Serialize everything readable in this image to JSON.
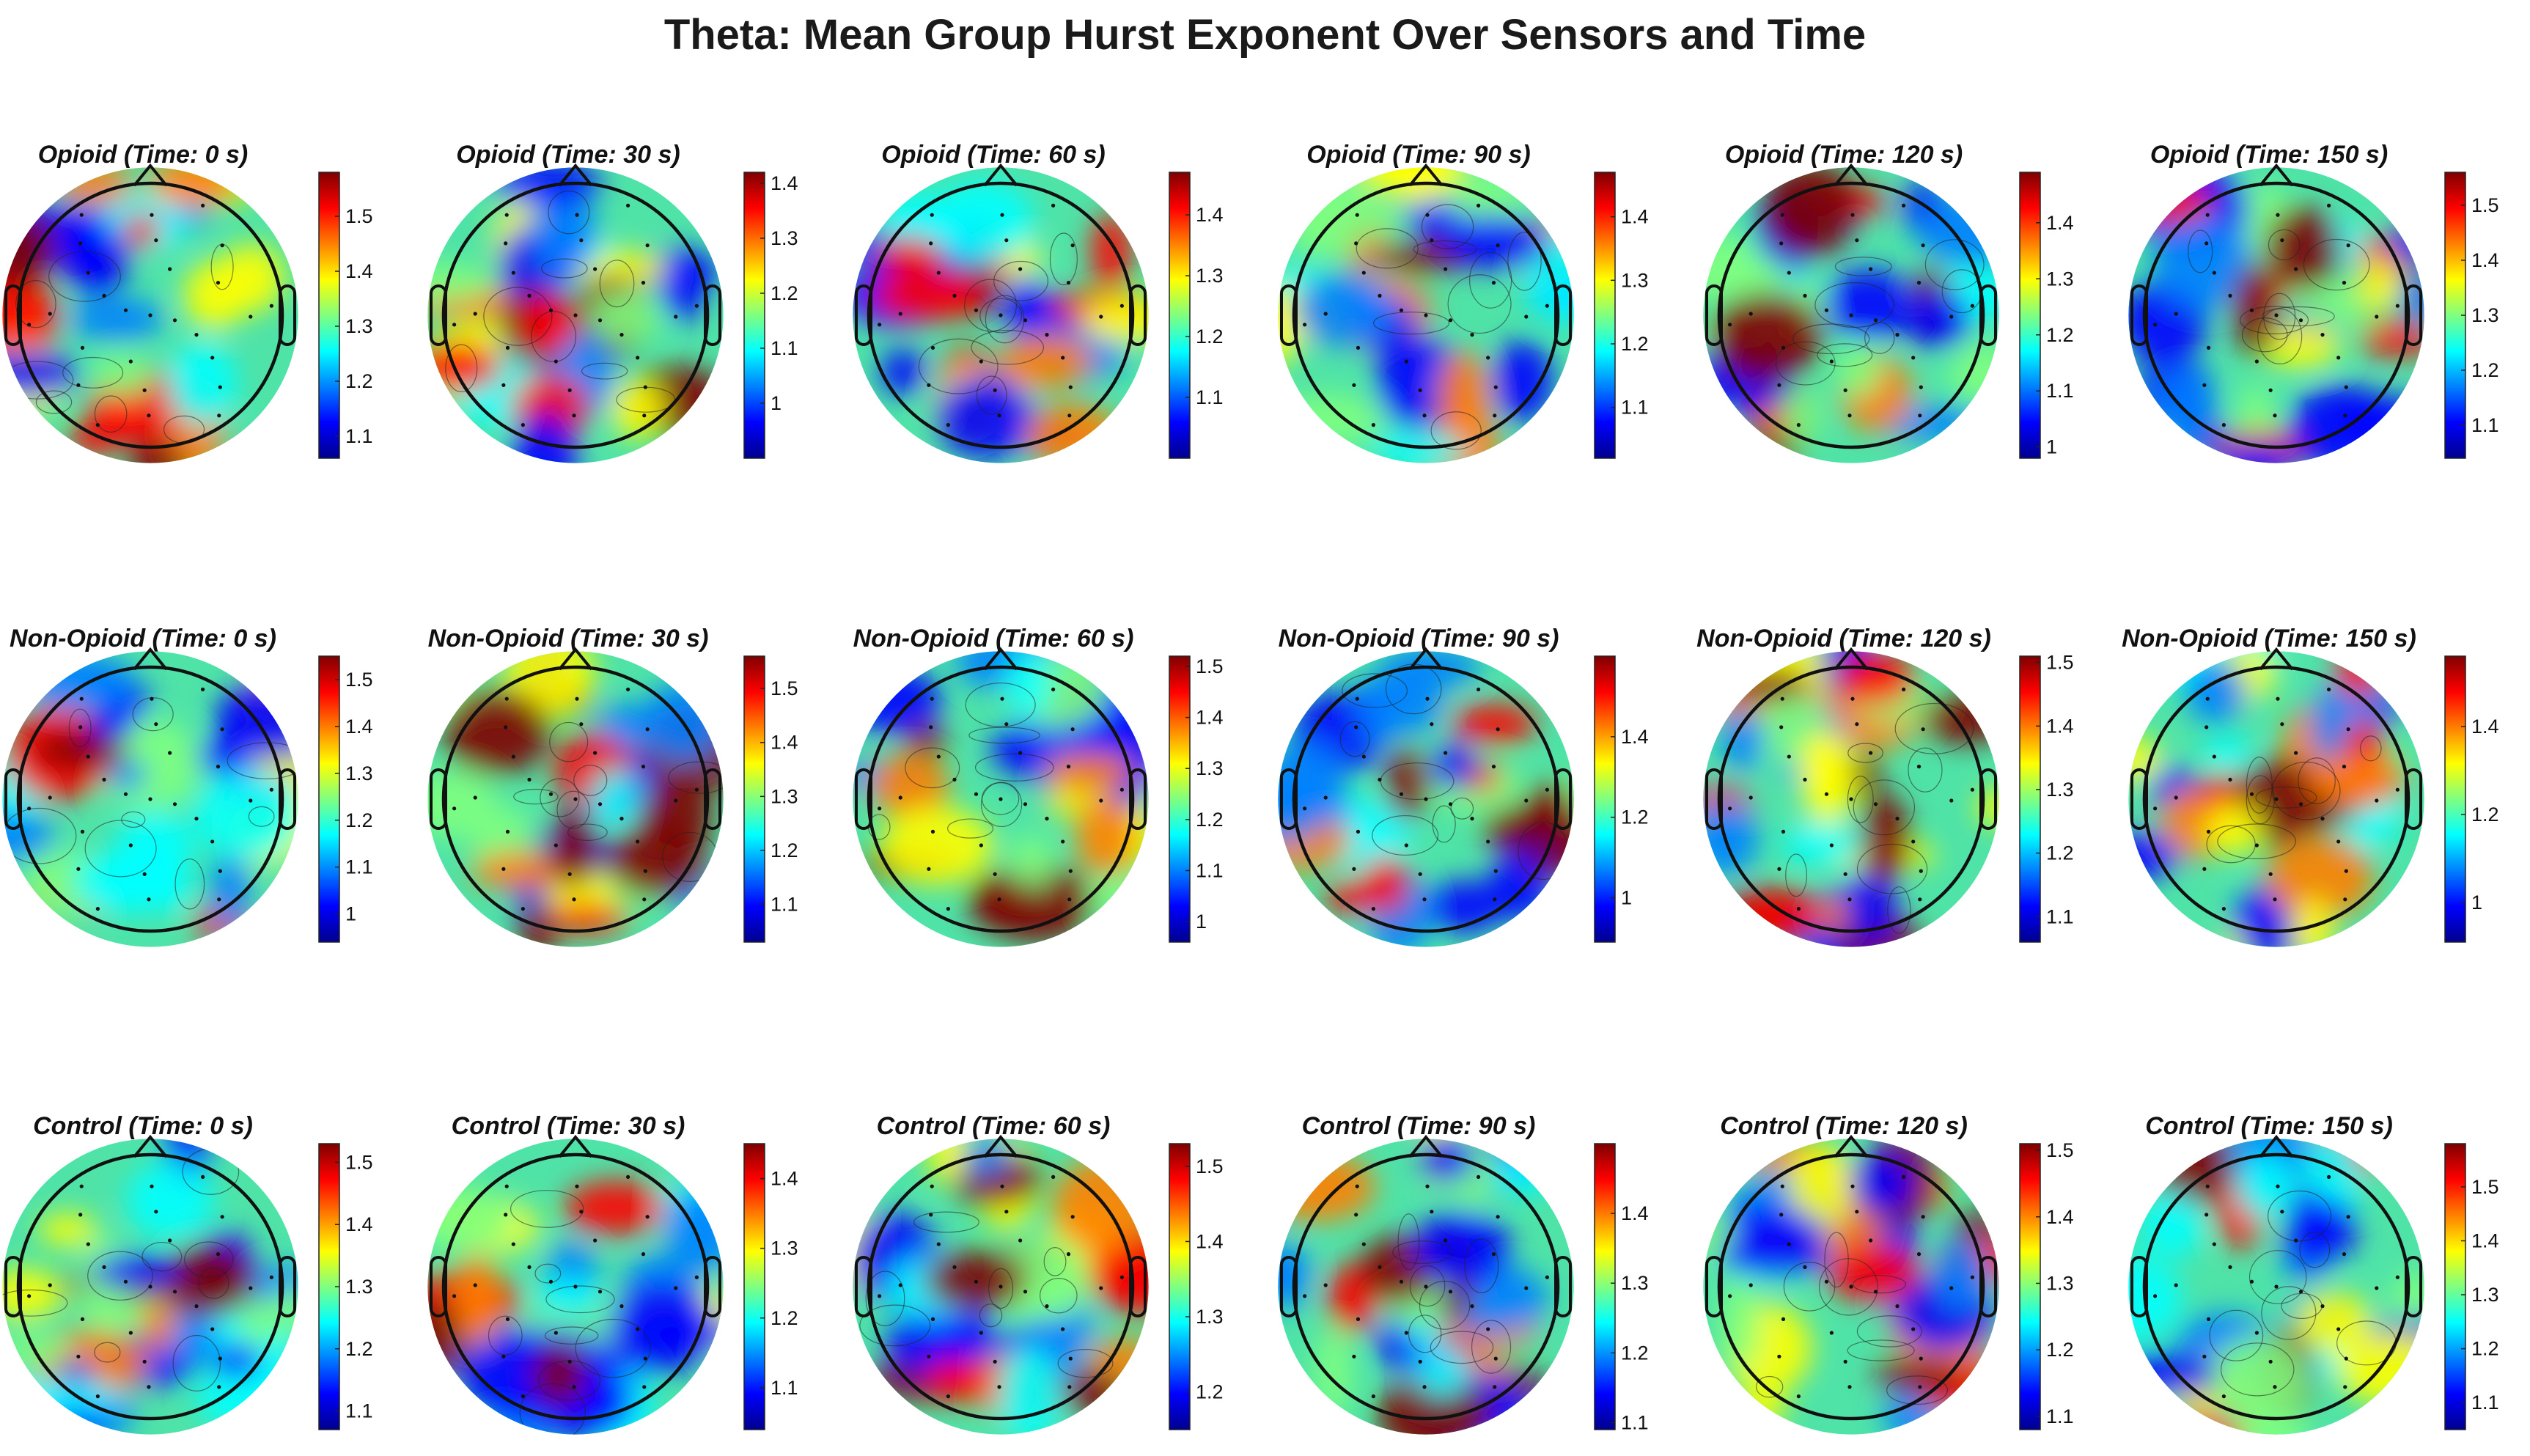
{
  "title": "Theta: Mean Group Hurst Exponent Over Sensors and Time",
  "colormap": [
    "#00008f",
    "#0000ff",
    "#0080ff",
    "#00ffff",
    "#80ff80",
    "#ffff00",
    "#ff8000",
    "#ff0000",
    "#800000"
  ],
  "groups": [
    "Opioid",
    "Non-Opioid",
    "Control"
  ],
  "panels": [
    [
      {
        "title": "Opioid (Time: 0 s)",
        "ticks": [
          "1.1",
          "1.2",
          "1.3",
          "1.4",
          "1.5"
        ],
        "range": [
          1.06,
          1.58
        ]
      },
      {
        "title": "Opioid (Time: 30 s)",
        "ticks": [
          "1",
          "1.1",
          "1.2",
          "1.3",
          "1.4"
        ],
        "range": [
          0.9,
          1.42
        ]
      },
      {
        "title": "Opioid (Time: 60 s)",
        "ticks": [
          "1.1",
          "1.2",
          "1.3",
          "1.4"
        ],
        "range": [
          1.0,
          1.47
        ]
      },
      {
        "title": "Opioid (Time: 90 s)",
        "ticks": [
          "1.1",
          "1.2",
          "1.3",
          "1.4"
        ],
        "range": [
          1.02,
          1.47
        ]
      },
      {
        "title": "Opioid (Time: 120 s)",
        "ticks": [
          "1",
          "1.1",
          "1.2",
          "1.3",
          "1.4"
        ],
        "range": [
          0.98,
          1.49
        ]
      },
      {
        "title": "Opioid (Time: 150 s)",
        "ticks": [
          "1.1",
          "1.2",
          "1.3",
          "1.4",
          "1.5"
        ],
        "range": [
          1.04,
          1.56
        ]
      }
    ],
    [
      {
        "title": "Non-Opioid (Time: 0 s)",
        "ticks": [
          "1",
          "1.1",
          "1.2",
          "1.3",
          "1.4",
          "1.5"
        ],
        "range": [
          0.94,
          1.55
        ]
      },
      {
        "title": "Non-Opioid (Time: 30 s)",
        "ticks": [
          "1.1",
          "1.2",
          "1.3",
          "1.4",
          "1.5"
        ],
        "range": [
          1.03,
          1.56
        ]
      },
      {
        "title": "Non-Opioid (Time: 60 s)",
        "ticks": [
          "1",
          "1.1",
          "1.2",
          "1.3",
          "1.4",
          "1.5"
        ],
        "range": [
          0.96,
          1.52
        ]
      },
      {
        "title": "Non-Opioid (Time: 90 s)",
        "ticks": [
          "1",
          "1.2",
          "1.4"
        ],
        "range": [
          0.89,
          1.6
        ]
      },
      {
        "title": "Non-Opioid (Time: 120 s)",
        "ticks": [
          "1.1",
          "1.2",
          "1.3",
          "1.4",
          "1.5"
        ],
        "range": [
          1.06,
          1.51
        ]
      },
      {
        "title": "Non-Opioid (Time: 150 s)",
        "ticks": [
          "1",
          "1.2",
          "1.4"
        ],
        "range": [
          0.91,
          1.56
        ]
      }
    ],
    [
      {
        "title": "Control (Time: 0 s)",
        "ticks": [
          "1.1",
          "1.2",
          "1.3",
          "1.4",
          "1.5"
        ],
        "range": [
          1.07,
          1.53
        ]
      },
      {
        "title": "Control (Time: 30 s)",
        "ticks": [
          "1.1",
          "1.2",
          "1.3",
          "1.4"
        ],
        "range": [
          1.04,
          1.45
        ]
      },
      {
        "title": "Control (Time: 60 s)",
        "ticks": [
          "1.2",
          "1.3",
          "1.4",
          "1.5"
        ],
        "range": [
          1.15,
          1.53
        ]
      },
      {
        "title": "Control (Time: 90 s)",
        "ticks": [
          "1.1",
          "1.2",
          "1.3",
          "1.4"
        ],
        "range": [
          1.09,
          1.5
        ]
      },
      {
        "title": "Control (Time: 120 s)",
        "ticks": [
          "1.1",
          "1.2",
          "1.3",
          "1.4",
          "1.5"
        ],
        "range": [
          1.08,
          1.51
        ]
      },
      {
        "title": "Control (Time: 150 s)",
        "ticks": [
          "1.1",
          "1.2",
          "1.3",
          "1.4",
          "1.5"
        ],
        "range": [
          1.05,
          1.58
        ]
      }
    ]
  ]
}
